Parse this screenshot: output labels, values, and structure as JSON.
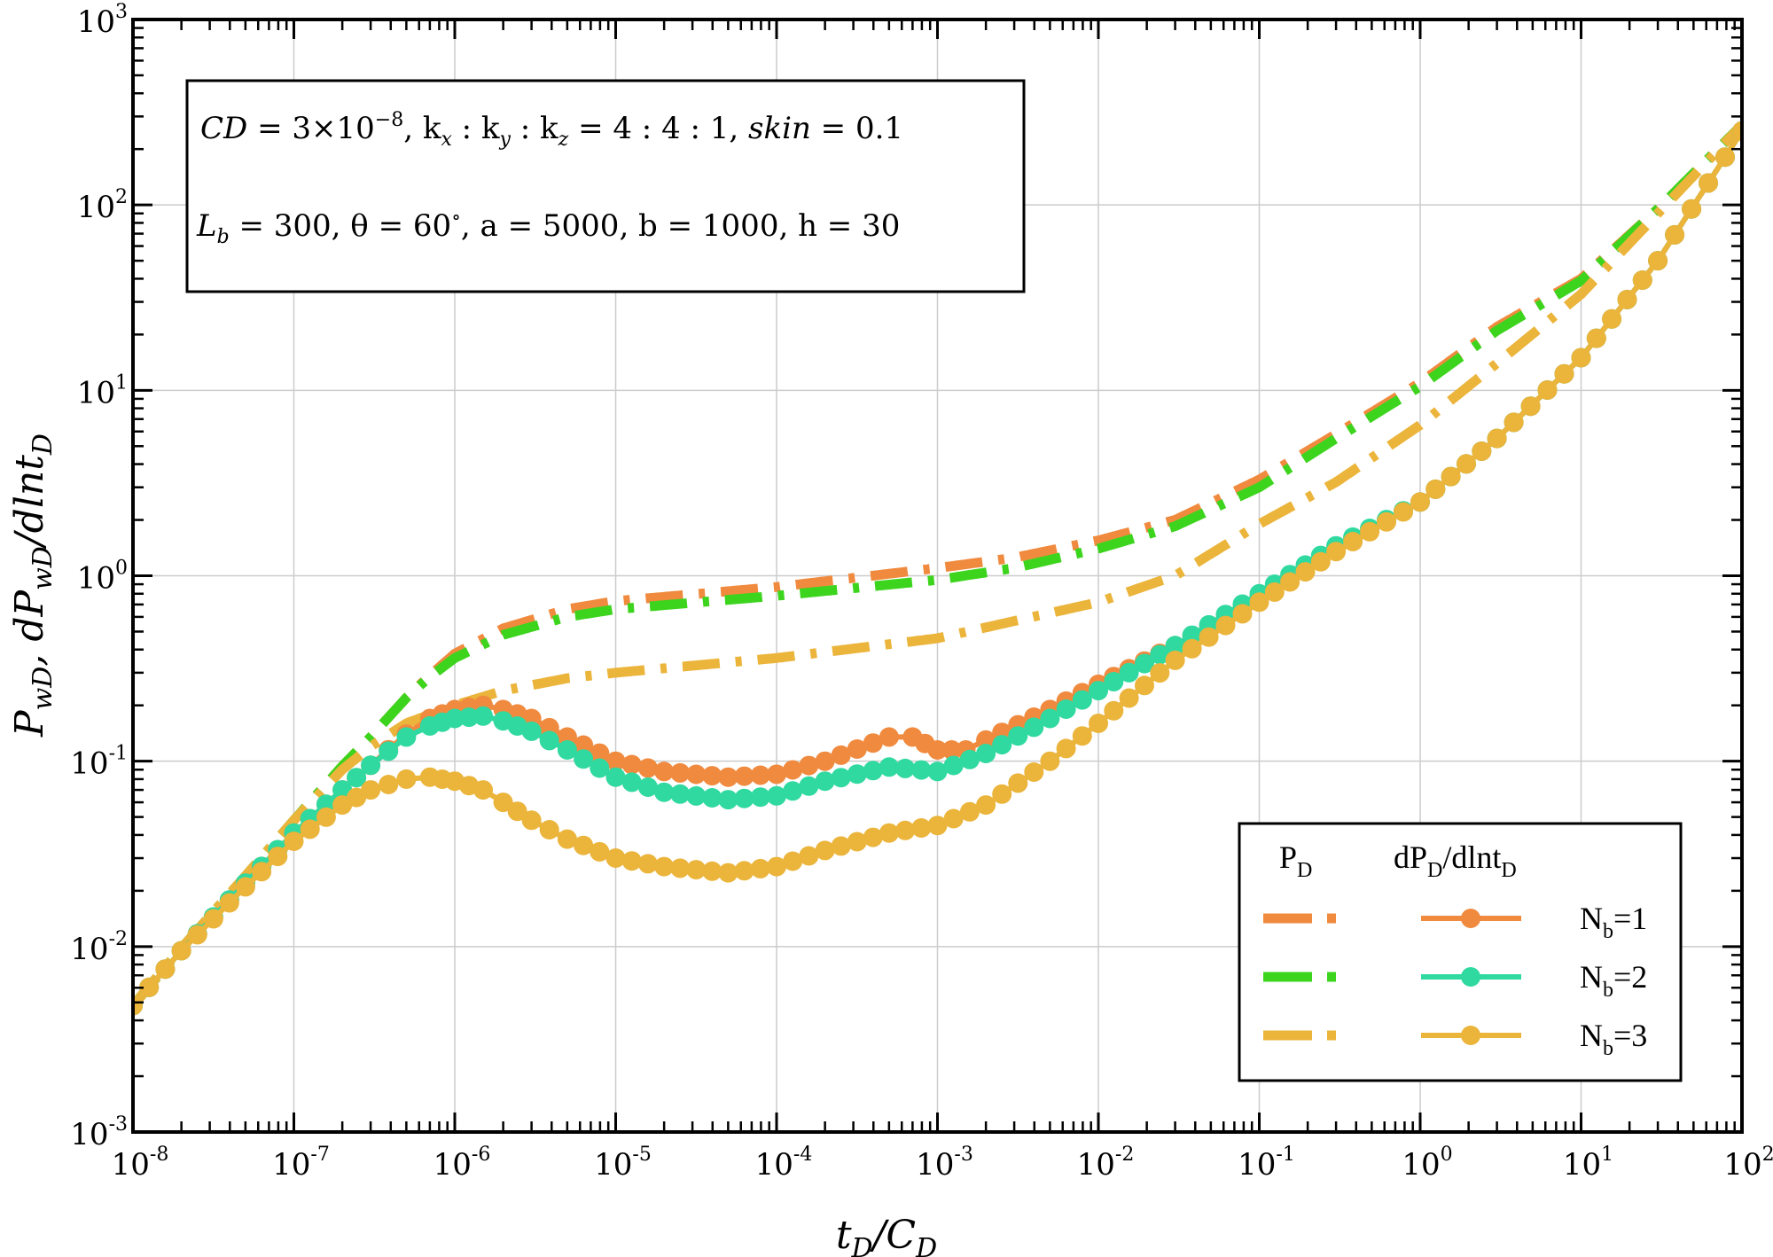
{
  "chart_data": {
    "type": "line",
    "xscale": "log",
    "yscale": "log",
    "xlim": [
      1e-08,
      100
    ],
    "ylim": [
      0.001,
      1000
    ],
    "grid": true,
    "legend_position": "bottom-right",
    "xlabel": {
      "main": "t",
      "sub1": "D",
      "mid": "/C",
      "sub2": "D"
    },
    "ylabel": {
      "p1": "P",
      "s1": "wD",
      "p2": ", dP",
      "s2": "wD",
      "p3": "/dlnt",
      "s3": "D"
    },
    "x_ticks": [
      {
        "value": 1e-08,
        "base": "10",
        "exp": "-8"
      },
      {
        "value": 1e-07,
        "base": "10",
        "exp": "-7"
      },
      {
        "value": 1e-06,
        "base": "10",
        "exp": "-6"
      },
      {
        "value": 1e-05,
        "base": "10",
        "exp": "-5"
      },
      {
        "value": 0.0001,
        "base": "10",
        "exp": "-4"
      },
      {
        "value": 0.001,
        "base": "10",
        "exp": "-3"
      },
      {
        "value": 0.01,
        "base": "10",
        "exp": "-2"
      },
      {
        "value": 0.1,
        "base": "10",
        "exp": "-1"
      },
      {
        "value": 1,
        "base": "10",
        "exp": "0"
      },
      {
        "value": 10,
        "base": "10",
        "exp": "1"
      },
      {
        "value": 100,
        "base": "10",
        "exp": "2"
      }
    ],
    "y_ticks": [
      {
        "value": 0.001,
        "base": "10",
        "exp": "-3"
      },
      {
        "value": 0.01,
        "base": "10",
        "exp": "-2"
      },
      {
        "value": 0.1,
        "base": "10",
        "exp": "-1"
      },
      {
        "value": 1,
        "base": "10",
        "exp": "0"
      },
      {
        "value": 10,
        "base": "10",
        "exp": "1"
      },
      {
        "value": 100,
        "base": "10",
        "exp": "2"
      },
      {
        "value": 1000,
        "base": "10",
        "exp": "3"
      }
    ],
    "annotation": {
      "line1": {
        "a": "CD",
        "b": " = 3×10",
        "b_exp": "−8",
        "c": ", k",
        "c_sub": "x",
        "d": " : k",
        "d_sub": "y",
        "e": " : k",
        "e_sub": "z",
        "f": " = 4 : 4 : 1, ",
        "g": "skin",
        "h": " = 0.1"
      },
      "line2": {
        "a": "L",
        "a_sub": "b",
        "b": " = 300, θ = 60",
        "b_exp": "∘",
        "c": ", a = 5000, b = 1000, h = 30"
      }
    },
    "legend": {
      "col1_main": "P",
      "col1_sub": "D",
      "col2_a": "dP",
      "col2_a_sub": "D",
      "col2_b": "/dlnt",
      "col2_b_sub": "D",
      "rows": [
        {
          "main": "N",
          "sub": "b",
          "tail": "=1",
          "color": "#F08A3E"
        },
        {
          "main": "N",
          "sub": "b",
          "tail": "=2",
          "color_pd": "#3DD41E",
          "color": "#2FD9A0"
        },
        {
          "main": "N",
          "sub": "b",
          "tail": "=3",
          "color": "#EBB43A"
        }
      ]
    },
    "series": [
      {
        "kind": "dashdot",
        "color": "#F08A3E",
        "points": [
          [
            1e-08,
            0.0048
          ],
          [
            2e-08,
            0.0098
          ],
          [
            5e-08,
            0.024
          ],
          [
            1e-07,
            0.048
          ],
          [
            2e-07,
            0.094
          ],
          [
            3e-07,
            0.135
          ],
          [
            5e-07,
            0.22
          ],
          [
            7e-07,
            0.29
          ],
          [
            1e-06,
            0.38
          ],
          [
            2e-06,
            0.52
          ],
          [
            5e-06,
            0.66
          ],
          [
            1e-05,
            0.73
          ],
          [
            0.0001,
            0.87
          ],
          [
            0.001,
            1.1
          ],
          [
            0.003,
            1.25
          ],
          [
            0.01,
            1.55
          ],
          [
            0.03,
            2.0
          ],
          [
            0.1,
            3.3
          ],
          [
            0.3,
            5.8
          ],
          [
            1,
            11
          ],
          [
            3,
            22
          ],
          [
            10,
            40
          ],
          [
            30,
            95
          ],
          [
            100,
            270
          ]
        ]
      },
      {
        "kind": "dashdot",
        "color": "#3DD41E",
        "points": [
          [
            1e-08,
            0.0048
          ],
          [
            2e-08,
            0.0098
          ],
          [
            5e-08,
            0.024
          ],
          [
            1e-07,
            0.048
          ],
          [
            2e-07,
            0.094
          ],
          [
            3e-07,
            0.135
          ],
          [
            5e-07,
            0.22
          ],
          [
            7e-07,
            0.285
          ],
          [
            1e-06,
            0.36
          ],
          [
            2e-06,
            0.48
          ],
          [
            5e-06,
            0.6
          ],
          [
            1e-05,
            0.66
          ],
          [
            0.0001,
            0.78
          ],
          [
            0.001,
            0.95
          ],
          [
            0.003,
            1.1
          ],
          [
            0.01,
            1.4
          ],
          [
            0.03,
            1.85
          ],
          [
            0.1,
            3.0
          ],
          [
            0.3,
            5.5
          ],
          [
            1,
            10.5
          ],
          [
            3,
            21
          ],
          [
            10,
            39
          ],
          [
            30,
            95
          ],
          [
            100,
            270
          ]
        ]
      },
      {
        "kind": "dashdot",
        "color": "#EBB43A",
        "points": [
          [
            1e-08,
            0.0048
          ],
          [
            2e-08,
            0.0098
          ],
          [
            5e-08,
            0.024
          ],
          [
            1e-07,
            0.048
          ],
          [
            2e-07,
            0.09
          ],
          [
            3e-07,
            0.12
          ],
          [
            5e-07,
            0.16
          ],
          [
            1e-06,
            0.2
          ],
          [
            2e-06,
            0.24
          ],
          [
            5e-06,
            0.28
          ],
          [
            1e-05,
            0.3
          ],
          [
            0.0001,
            0.36
          ],
          [
            0.001,
            0.46
          ],
          [
            0.01,
            0.72
          ],
          [
            0.03,
            1.0
          ],
          [
            0.1,
            1.9
          ],
          [
            0.3,
            3.2
          ],
          [
            1,
            6.5
          ],
          [
            3,
            14
          ],
          [
            10,
            33
          ],
          [
            30,
            90
          ],
          [
            100,
            270
          ]
        ]
      },
      {
        "kind": "marker",
        "color": "#F08A3E",
        "points": [
          [
            1e-08,
            0.0048
          ],
          [
            2e-08,
            0.0095
          ],
          [
            5e-08,
            0.022
          ],
          [
            1e-07,
            0.041
          ],
          [
            2e-07,
            0.07
          ],
          [
            3e-07,
            0.095
          ],
          [
            5e-07,
            0.14
          ],
          [
            7e-07,
            0.17
          ],
          [
            1e-06,
            0.19
          ],
          [
            1.5e-06,
            0.2
          ],
          [
            2e-06,
            0.19
          ],
          [
            3e-06,
            0.17
          ],
          [
            5e-06,
            0.135
          ],
          [
            1e-05,
            0.1
          ],
          [
            2e-05,
            0.088
          ],
          [
            5e-05,
            0.082
          ],
          [
            0.0001,
            0.085
          ],
          [
            0.0002,
            0.1
          ],
          [
            0.0005,
            0.135
          ],
          [
            0.0007,
            0.135
          ],
          [
            0.001,
            0.115
          ],
          [
            0.0015,
            0.115
          ],
          [
            0.002,
            0.13
          ],
          [
            0.005,
            0.19
          ],
          [
            0.01,
            0.26
          ],
          [
            0.03,
            0.42
          ],
          [
            0.1,
            0.78
          ],
          [
            0.3,
            1.4
          ],
          [
            1,
            2.5
          ],
          [
            3,
            5.5
          ],
          [
            10,
            15
          ],
          [
            30,
            50
          ],
          [
            100,
            250
          ]
        ]
      },
      {
        "kind": "marker",
        "color": "#2FD9A0",
        "points": [
          [
            1e-08,
            0.0048
          ],
          [
            2e-08,
            0.0095
          ],
          [
            5e-08,
            0.022
          ],
          [
            1e-07,
            0.041
          ],
          [
            2e-07,
            0.07
          ],
          [
            3e-07,
            0.095
          ],
          [
            5e-07,
            0.135
          ],
          [
            7e-07,
            0.155
          ],
          [
            1e-06,
            0.17
          ],
          [
            1.5e-06,
            0.175
          ],
          [
            2e-06,
            0.165
          ],
          [
            3e-06,
            0.145
          ],
          [
            5e-06,
            0.115
          ],
          [
            1e-05,
            0.082
          ],
          [
            2e-05,
            0.068
          ],
          [
            5e-05,
            0.062
          ],
          [
            0.0001,
            0.065
          ],
          [
            0.0002,
            0.078
          ],
          [
            0.0005,
            0.093
          ],
          [
            0.001,
            0.088
          ],
          [
            0.002,
            0.11
          ],
          [
            0.005,
            0.17
          ],
          [
            0.01,
            0.24
          ],
          [
            0.03,
            0.42
          ],
          [
            0.1,
            0.8
          ],
          [
            0.3,
            1.45
          ],
          [
            1,
            2.5
          ],
          [
            3,
            5.5
          ],
          [
            10,
            15
          ],
          [
            30,
            50
          ],
          [
            100,
            250
          ]
        ]
      },
      {
        "kind": "marker",
        "color": "#EBB43A",
        "points": [
          [
            1e-08,
            0.0048
          ],
          [
            2e-08,
            0.0095
          ],
          [
            5e-08,
            0.021
          ],
          [
            1e-07,
            0.037
          ],
          [
            2e-07,
            0.058
          ],
          [
            3e-07,
            0.07
          ],
          [
            5e-07,
            0.08
          ],
          [
            7e-07,
            0.082
          ],
          [
            1e-06,
            0.078
          ],
          [
            1.5e-06,
            0.07
          ],
          [
            2e-06,
            0.06
          ],
          [
            3e-06,
            0.048
          ],
          [
            5e-06,
            0.038
          ],
          [
            1e-05,
            0.03
          ],
          [
            2e-05,
            0.027
          ],
          [
            5e-05,
            0.025
          ],
          [
            0.0001,
            0.027
          ],
          [
            0.0002,
            0.033
          ],
          [
            0.0005,
            0.041
          ],
          [
            0.001,
            0.045
          ],
          [
            0.002,
            0.058
          ],
          [
            0.005,
            0.1
          ],
          [
            0.01,
            0.16
          ],
          [
            0.03,
            0.35
          ],
          [
            0.1,
            0.72
          ],
          [
            0.3,
            1.35
          ],
          [
            1,
            2.5
          ],
          [
            3,
            5.5
          ],
          [
            10,
            15
          ],
          [
            30,
            50
          ],
          [
            100,
            250
          ]
        ]
      }
    ]
  }
}
